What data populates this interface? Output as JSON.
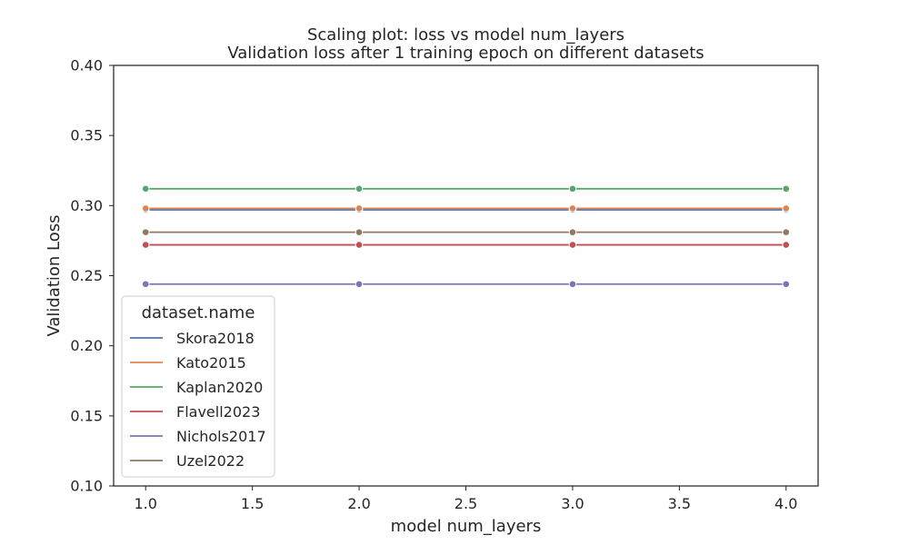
{
  "chart_data": {
    "type": "line",
    "title": "Scaling plot: loss vs model num_layers",
    "subtitle": "Validation loss after 1 training epoch on different datasets",
    "xlabel": "model num_layers",
    "ylabel": "Validation Loss",
    "xlim": [
      0.85,
      4.15
    ],
    "ylim": [
      0.1,
      0.4
    ],
    "xticks": [
      1.0,
      1.5,
      2.0,
      2.5,
      3.0,
      3.5,
      4.0
    ],
    "xtick_labels": [
      "1.0",
      "1.5",
      "2.0",
      "2.5",
      "3.0",
      "3.5",
      "4.0"
    ],
    "yticks": [
      0.1,
      0.15,
      0.2,
      0.25,
      0.3,
      0.35,
      0.4
    ],
    "ytick_labels": [
      "0.10",
      "0.15",
      "0.20",
      "0.25",
      "0.30",
      "0.35",
      "0.40"
    ],
    "grid": false,
    "markers": true,
    "x": [
      1.0,
      2.0,
      3.0,
      4.0
    ],
    "legend": {
      "title": "dataset.name",
      "placement": "lower-left"
    },
    "series": [
      {
        "name": "Skora2018",
        "color": "#4c72b0",
        "values": [
          0.297,
          0.297,
          0.297,
          0.297
        ]
      },
      {
        "name": "Kato2015",
        "color": "#dd8452",
        "values": [
          0.298,
          0.298,
          0.298,
          0.298
        ]
      },
      {
        "name": "Kaplan2020",
        "color": "#55a868",
        "values": [
          0.312,
          0.312,
          0.312,
          0.312
        ]
      },
      {
        "name": "Flavell2023",
        "color": "#c44e52",
        "values": [
          0.272,
          0.272,
          0.272,
          0.272
        ]
      },
      {
        "name": "Nichols2017",
        "color": "#8172b3",
        "values": [
          0.244,
          0.244,
          0.244,
          0.244
        ]
      },
      {
        "name": "Uzel2022",
        "color": "#937860",
        "values": [
          0.281,
          0.281,
          0.281,
          0.281
        ]
      }
    ]
  }
}
